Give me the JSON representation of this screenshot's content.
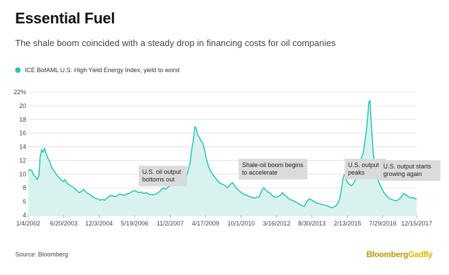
{
  "header": {
    "title": "Essential Fuel",
    "subtitle": "The shale boom coincided with a steady drop in financing costs for oil companies"
  },
  "footer": {
    "source": "Source: Bloomberg",
    "brand_primary": "Bloomberg",
    "brand_secondary": "Gadfly"
  },
  "colors": {
    "line": "#2ec4b6",
    "fill": "#d8f3ef",
    "annotation_bg": "#d9d9d9",
    "grid": "#dddddd"
  },
  "chart_data": {
    "type": "area",
    "title": "Essential Fuel",
    "series_name": "ICE BofAML U.S. High Yield Energy Index, yield to worst",
    "ylim": [
      4,
      22
    ],
    "yticks": [
      4,
      6,
      8,
      10,
      12,
      14,
      16,
      18,
      20,
      22
    ],
    "ytick_labels": [
      "4",
      "6",
      "8",
      "10",
      "12",
      "14",
      "16",
      "18",
      "20",
      "22%"
    ],
    "xlim": [
      2002.01,
      2017.96
    ],
    "xticks": [
      {
        "x": 2002.01,
        "label": "1/4/2002"
      },
      {
        "x": 2003.47,
        "label": "6/20/2003"
      },
      {
        "x": 2004.92,
        "label": "12/3/2004"
      },
      {
        "x": 2006.38,
        "label": "5/19/2006"
      },
      {
        "x": 2007.84,
        "label": "11/2/2007"
      },
      {
        "x": 2009.29,
        "label": "4/17/2009"
      },
      {
        "x": 2010.75,
        "label": "10/1/2010"
      },
      {
        "x": 2012.21,
        "label": "3/16/2012"
      },
      {
        "x": 2013.66,
        "label": "8/30/2013"
      },
      {
        "x": 2015.12,
        "label": "2/13/2015"
      },
      {
        "x": 2016.57,
        "label": "7/29/2016"
      },
      {
        "x": 2017.96,
        "label": "12/15/2017"
      }
    ],
    "points": [
      [
        2002.01,
        10.4
      ],
      [
        2002.08,
        10.7
      ],
      [
        2002.15,
        10.6
      ],
      [
        2002.22,
        10.0
      ],
      [
        2002.3,
        9.6
      ],
      [
        2002.38,
        9.2
      ],
      [
        2002.45,
        9.8
      ],
      [
        2002.5,
        12.5
      ],
      [
        2002.56,
        13.6
      ],
      [
        2002.62,
        13.2
      ],
      [
        2002.68,
        13.8
      ],
      [
        2002.75,
        13.0
      ],
      [
        2002.82,
        12.3
      ],
      [
        2002.9,
        11.8
      ],
      [
        2002.97,
        11.0
      ],
      [
        2003.05,
        10.6
      ],
      [
        2003.12,
        10.2
      ],
      [
        2003.2,
        9.8
      ],
      [
        2003.28,
        9.5
      ],
      [
        2003.36,
        9.2
      ],
      [
        2003.45,
        8.9
      ],
      [
        2003.52,
        9.2
      ],
      [
        2003.6,
        8.7
      ],
      [
        2003.7,
        8.4
      ],
      [
        2003.8,
        8.2
      ],
      [
        2003.9,
        8.0
      ],
      [
        2004.0,
        7.6
      ],
      [
        2004.1,
        7.3
      ],
      [
        2004.2,
        7.5
      ],
      [
        2004.28,
        7.8
      ],
      [
        2004.35,
        7.5
      ],
      [
        2004.45,
        7.2
      ],
      [
        2004.55,
        7.0
      ],
      [
        2004.65,
        6.7
      ],
      [
        2004.75,
        6.5
      ],
      [
        2004.85,
        6.4
      ],
      [
        2004.95,
        6.2
      ],
      [
        2005.05,
        6.3
      ],
      [
        2005.15,
        6.2
      ],
      [
        2005.25,
        6.5
      ],
      [
        2005.35,
        6.8
      ],
      [
        2005.45,
        6.9
      ],
      [
        2005.55,
        6.7
      ],
      [
        2005.65,
        6.8
      ],
      [
        2005.75,
        7.1
      ],
      [
        2005.85,
        7.0
      ],
      [
        2005.95,
        6.9
      ],
      [
        2006.05,
        7.1
      ],
      [
        2006.15,
        7.2
      ],
      [
        2006.25,
        7.4
      ],
      [
        2006.35,
        7.6
      ],
      [
        2006.45,
        7.5
      ],
      [
        2006.55,
        7.3
      ],
      [
        2006.65,
        7.4
      ],
      [
        2006.75,
        7.2
      ],
      [
        2006.85,
        7.3
      ],
      [
        2006.95,
        7.1
      ],
      [
        2007.05,
        7.0
      ],
      [
        2007.15,
        7.0
      ],
      [
        2007.25,
        7.1
      ],
      [
        2007.35,
        7.3
      ],
      [
        2007.45,
        7.6
      ],
      [
        2007.55,
        8.0
      ],
      [
        2007.65,
        7.8
      ],
      [
        2007.75,
        8.1
      ],
      [
        2007.85,
        8.3
      ],
      [
        2007.95,
        8.6
      ],
      [
        2008.05,
        8.9
      ],
      [
        2008.15,
        9.2
      ],
      [
        2008.25,
        9.0
      ],
      [
        2008.35,
        8.6
      ],
      [
        2008.45,
        9.0
      ],
      [
        2008.55,
        10.2
      ],
      [
        2008.65,
        11.5
      ],
      [
        2008.72,
        13.5
      ],
      [
        2008.8,
        15.2
      ],
      [
        2008.85,
        16.9
      ],
      [
        2008.9,
        16.8
      ],
      [
        2008.96,
        15.8
      ],
      [
        2009.03,
        15.4
      ],
      [
        2009.1,
        14.9
      ],
      [
        2009.18,
        14.5
      ],
      [
        2009.26,
        13.4
      ],
      [
        2009.34,
        12.0
      ],
      [
        2009.42,
        11.1
      ],
      [
        2009.5,
        10.4
      ],
      [
        2009.58,
        10.0
      ],
      [
        2009.66,
        9.6
      ],
      [
        2009.75,
        9.2
      ],
      [
        2009.84,
        8.8
      ],
      [
        2009.92,
        8.6
      ],
      [
        2010.0,
        8.5
      ],
      [
        2010.1,
        8.3
      ],
      [
        2010.2,
        8.0
      ],
      [
        2010.3,
        8.5
      ],
      [
        2010.4,
        8.8
      ],
      [
        2010.5,
        8.2
      ],
      [
        2010.6,
        7.8
      ],
      [
        2010.7,
        7.5
      ],
      [
        2010.8,
        7.2
      ],
      [
        2010.9,
        7.0
      ],
      [
        2011.0,
        6.9
      ],
      [
        2011.1,
        6.7
      ],
      [
        2011.2,
        6.6
      ],
      [
        2011.3,
        6.5
      ],
      [
        2011.4,
        6.6
      ],
      [
        2011.5,
        6.7
      ],
      [
        2011.6,
        7.6
      ],
      [
        2011.68,
        8.0
      ],
      [
        2011.76,
        7.7
      ],
      [
        2011.85,
        7.4
      ],
      [
        2011.95,
        7.2
      ],
      [
        2012.05,
        6.8
      ],
      [
        2012.15,
        6.6
      ],
      [
        2012.25,
        6.7
      ],
      [
        2012.35,
        6.9
      ],
      [
        2012.45,
        7.3
      ],
      [
        2012.55,
        6.9
      ],
      [
        2012.65,
        6.6
      ],
      [
        2012.75,
        6.3
      ],
      [
        2012.85,
        6.2
      ],
      [
        2012.95,
        6.0
      ],
      [
        2013.05,
        5.8
      ],
      [
        2013.15,
        5.6
      ],
      [
        2013.25,
        5.4
      ],
      [
        2013.35,
        5.3
      ],
      [
        2013.45,
        6.0
      ],
      [
        2013.55,
        6.4
      ],
      [
        2013.65,
        6.2
      ],
      [
        2013.75,
        6.0
      ],
      [
        2013.85,
        5.8
      ],
      [
        2013.95,
        5.7
      ],
      [
        2014.05,
        5.6
      ],
      [
        2014.15,
        5.5
      ],
      [
        2014.25,
        5.4
      ],
      [
        2014.35,
        5.3
      ],
      [
        2014.45,
        5.1
      ],
      [
        2014.55,
        5.2
      ],
      [
        2014.65,
        5.4
      ],
      [
        2014.75,
        5.9
      ],
      [
        2014.82,
        6.8
      ],
      [
        2014.88,
        8.0
      ],
      [
        2014.94,
        9.5
      ],
      [
        2015.0,
        10.0
      ],
      [
        2015.06,
        9.2
      ],
      [
        2015.12,
        8.8
      ],
      [
        2015.2,
        8.5
      ],
      [
        2015.28,
        8.3
      ],
      [
        2015.36,
        8.6
      ],
      [
        2015.44,
        9.2
      ],
      [
        2015.52,
        10.0
      ],
      [
        2015.6,
        11.2
      ],
      [
        2015.68,
        12.3
      ],
      [
        2015.76,
        13.0
      ],
      [
        2015.84,
        15.0
      ],
      [
        2015.9,
        16.5
      ],
      [
        2015.96,
        19.0
      ],
      [
        2016.0,
        20.6
      ],
      [
        2016.04,
        20.8
      ],
      [
        2016.08,
        18.5
      ],
      [
        2016.13,
        15.5
      ],
      [
        2016.18,
        13.0
      ],
      [
        2016.24,
        11.5
      ],
      [
        2016.3,
        10.0
      ],
      [
        2016.38,
        9.1
      ],
      [
        2016.46,
        8.4
      ],
      [
        2016.54,
        7.8
      ],
      [
        2016.62,
        7.3
      ],
      [
        2016.7,
        6.9
      ],
      [
        2016.78,
        6.6
      ],
      [
        2016.86,
        6.4
      ],
      [
        2016.94,
        6.3
      ],
      [
        2017.02,
        6.2
      ],
      [
        2017.1,
        6.1
      ],
      [
        2017.18,
        6.2
      ],
      [
        2017.26,
        6.4
      ],
      [
        2017.34,
        6.7
      ],
      [
        2017.42,
        7.2
      ],
      [
        2017.5,
        7.0
      ],
      [
        2017.58,
        6.8
      ],
      [
        2017.66,
        6.6
      ],
      [
        2017.74,
        6.5
      ],
      [
        2017.82,
        6.6
      ],
      [
        2017.9,
        6.4
      ],
      [
        2017.96,
        6.4
      ]
    ],
    "annotations": [
      {
        "text": "U.S. oil output bottoms out",
        "lines": [
          "U.S. oil output",
          "bottoms out"
        ],
        "x": 2006.55
      },
      {
        "text": "Shale-oil boom begins to accelerate",
        "lines": [
          "Shale-oil boom begins",
          "to accelerate"
        ],
        "x": 2010.65
      },
      {
        "text": "U.S. output peaks",
        "lines": [
          "U.S. output",
          "peaks"
        ],
        "x": 2015.0
      },
      {
        "text": "U.S. output starts growing again",
        "lines": [
          "U.S. output starts",
          "growing again"
        ],
        "x": 2016.45
      }
    ]
  }
}
